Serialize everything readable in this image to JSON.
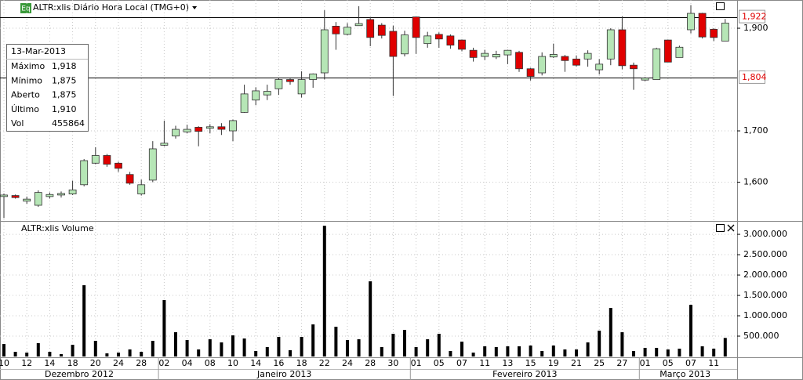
{
  "chart_data": {
    "type": "candlestick",
    "title": "ALTR:xlis Diário Hora Local (TMG+0)",
    "badge": "Eq",
    "months": [
      {
        "label": "Dezembro 2012",
        "categories": [
          "10",
          null,
          "12",
          null,
          "14",
          null,
          "18",
          null,
          "20",
          null,
          "24",
          null,
          "28",
          null
        ]
      },
      {
        "label": "Janeiro 2013",
        "categories": [
          "02",
          null,
          "04",
          null,
          "08",
          null,
          "10",
          null,
          "14",
          null,
          "16",
          null,
          "18",
          null,
          "22",
          null,
          "24",
          null,
          "28",
          null,
          "30",
          null
        ]
      },
      {
        "label": "Fevereiro 2013",
        "categories": [
          "01",
          null,
          "05",
          null,
          "07",
          null,
          "11",
          null,
          "13",
          null,
          "15",
          null,
          "19",
          null,
          "21",
          null,
          "25",
          null,
          "27",
          null
        ]
      },
      {
        "label": "Março 2013",
        "categories": [
          "01",
          null,
          "05",
          null,
          "07",
          null,
          "11",
          null
        ]
      }
    ],
    "open": [
      1.572,
      1.574,
      1.563,
      1.555,
      1.572,
      1.575,
      1.577,
      1.595,
      1.637,
      1.652,
      1.637,
      1.615,
      1.577,
      1.604,
      1.672,
      1.69,
      1.698,
      1.707,
      1.705,
      1.708,
      1.7,
      1.736,
      1.76,
      1.77,
      1.782,
      1.8,
      1.772,
      1.8,
      1.813,
      1.904,
      1.888,
      1.905,
      1.917,
      1.906,
      1.894,
      1.85,
      1.922,
      1.87,
      1.888,
      1.885,
      1.877,
      1.857,
      1.845,
      1.844,
      1.848,
      1.853,
      1.821,
      1.813,
      1.844,
      1.845,
      1.84,
      1.84,
      1.819,
      1.84,
      1.897,
      1.828,
      1.799,
      1.8,
      1.877,
      1.843,
      1.897,
      1.929,
      1.898,
      1.875
    ],
    "high": [
      1.578,
      1.576,
      1.572,
      1.584,
      1.58,
      1.582,
      1.603,
      1.645,
      1.668,
      1.655,
      1.64,
      1.62,
      1.605,
      1.68,
      1.72,
      1.71,
      1.712,
      1.709,
      1.713,
      1.715,
      1.722,
      1.79,
      1.785,
      1.79,
      1.803,
      1.802,
      1.816,
      1.812,
      1.935,
      1.912,
      1.91,
      1.943,
      1.922,
      1.91,
      1.905,
      1.895,
      1.922,
      1.893,
      1.892,
      1.888,
      1.878,
      1.862,
      1.858,
      1.856,
      1.858,
      1.856,
      1.823,
      1.853,
      1.87,
      1.848,
      1.847,
      1.857,
      1.84,
      1.9,
      1.923,
      1.833,
      1.805,
      1.862,
      1.878,
      1.866,
      1.945,
      1.93,
      1.9,
      1.918
    ],
    "low": [
      1.53,
      1.568,
      1.558,
      1.552,
      1.568,
      1.57,
      1.575,
      1.592,
      1.635,
      1.63,
      1.62,
      1.595,
      1.574,
      1.6,
      1.67,
      1.685,
      1.695,
      1.67,
      1.695,
      1.692,
      1.68,
      1.735,
      1.75,
      1.76,
      1.77,
      1.79,
      1.765,
      1.784,
      1.8,
      1.858,
      1.886,
      1.905,
      1.865,
      1.88,
      1.768,
      1.845,
      1.85,
      1.862,
      1.862,
      1.86,
      1.855,
      1.835,
      1.838,
      1.84,
      1.83,
      1.815,
      1.798,
      1.808,
      1.842,
      1.815,
      1.825,
      1.825,
      1.81,
      1.828,
      1.82,
      1.78,
      1.797,
      1.8,
      1.834,
      1.843,
      1.89,
      1.88,
      1.875,
      1.875
    ],
    "close": [
      1.575,
      1.57,
      1.567,
      1.58,
      1.576,
      1.578,
      1.585,
      1.642,
      1.652,
      1.635,
      1.627,
      1.598,
      1.595,
      1.665,
      1.676,
      1.703,
      1.703,
      1.699,
      1.708,
      1.703,
      1.72,
      1.772,
      1.778,
      1.777,
      1.8,
      1.796,
      1.8,
      1.811,
      1.897,
      1.889,
      1.902,
      1.909,
      1.882,
      1.886,
      1.845,
      1.887,
      1.882,
      1.885,
      1.879,
      1.867,
      1.859,
      1.843,
      1.851,
      1.849,
      1.857,
      1.821,
      1.806,
      1.845,
      1.849,
      1.837,
      1.828,
      1.851,
      1.83,
      1.897,
      1.827,
      1.821,
      1.803,
      1.86,
      1.834,
      1.863,
      1.929,
      1.883,
      1.882,
      1.91
    ],
    "up_color": "#b6e6b6",
    "down_color": "#e00000",
    "ylim": [
      1.526,
      1.955
    ],
    "yticks": [
      {
        "value": 1.6,
        "label": "1,600"
      },
      {
        "value": 1.7,
        "label": "1,700"
      },
      {
        "value": 1.9,
        "label": "1,900"
      }
    ],
    "hlines": [
      {
        "value": 1.922,
        "label": "1,922"
      },
      {
        "value": 1.804,
        "label": "1,804"
      }
    ],
    "hline_label_color": "#e00000",
    "grid": true,
    "volume": {
      "type": "bar",
      "title": "ALTR:xlis Volume",
      "color": "#000000",
      "values": [
        308000,
        115000,
        96000,
        327000,
        115000,
        58000,
        288000,
        1750000,
        385000,
        77000,
        96000,
        173000,
        115000,
        385000,
        1385000,
        596000,
        404000,
        173000,
        423000,
        346000,
        519000,
        442000,
        135000,
        231000,
        481000,
        154000,
        481000,
        788000,
        3210000,
        731000,
        404000,
        423000,
        1846000,
        231000,
        558000,
        654000,
        231000,
        423000,
        558000,
        135000,
        365000,
        96000,
        250000,
        231000,
        250000,
        250000,
        269000,
        135000,
        269000,
        173000,
        173000,
        346000,
        635000,
        1192000,
        596000,
        135000,
        212000,
        212000,
        173000,
        192000,
        1269000,
        250000,
        192000,
        455864
      ],
      "ylim": [
        0,
        3290000
      ],
      "yticks": [
        {
          "value": 500000,
          "label": "500.000"
        },
        {
          "value": 1000000,
          "label": "1.000.000"
        },
        {
          "value": 1500000,
          "label": "1.500.000"
        },
        {
          "value": 2000000,
          "label": "2.000.000"
        },
        {
          "value": 2500000,
          "label": "2.500.000"
        },
        {
          "value": 3000000,
          "label": "3.000.000"
        }
      ]
    },
    "info_box": {
      "date": "13-Mar-2013",
      "rows": [
        {
          "label": "Máximo",
          "value": "1,918"
        },
        {
          "label": "Mínimo",
          "value": "1,875"
        },
        {
          "label": "Aberto",
          "value": "1,875"
        },
        {
          "label": "Último",
          "value": "1,910"
        },
        {
          "label": "Vol",
          "value": "455864"
        }
      ]
    }
  }
}
